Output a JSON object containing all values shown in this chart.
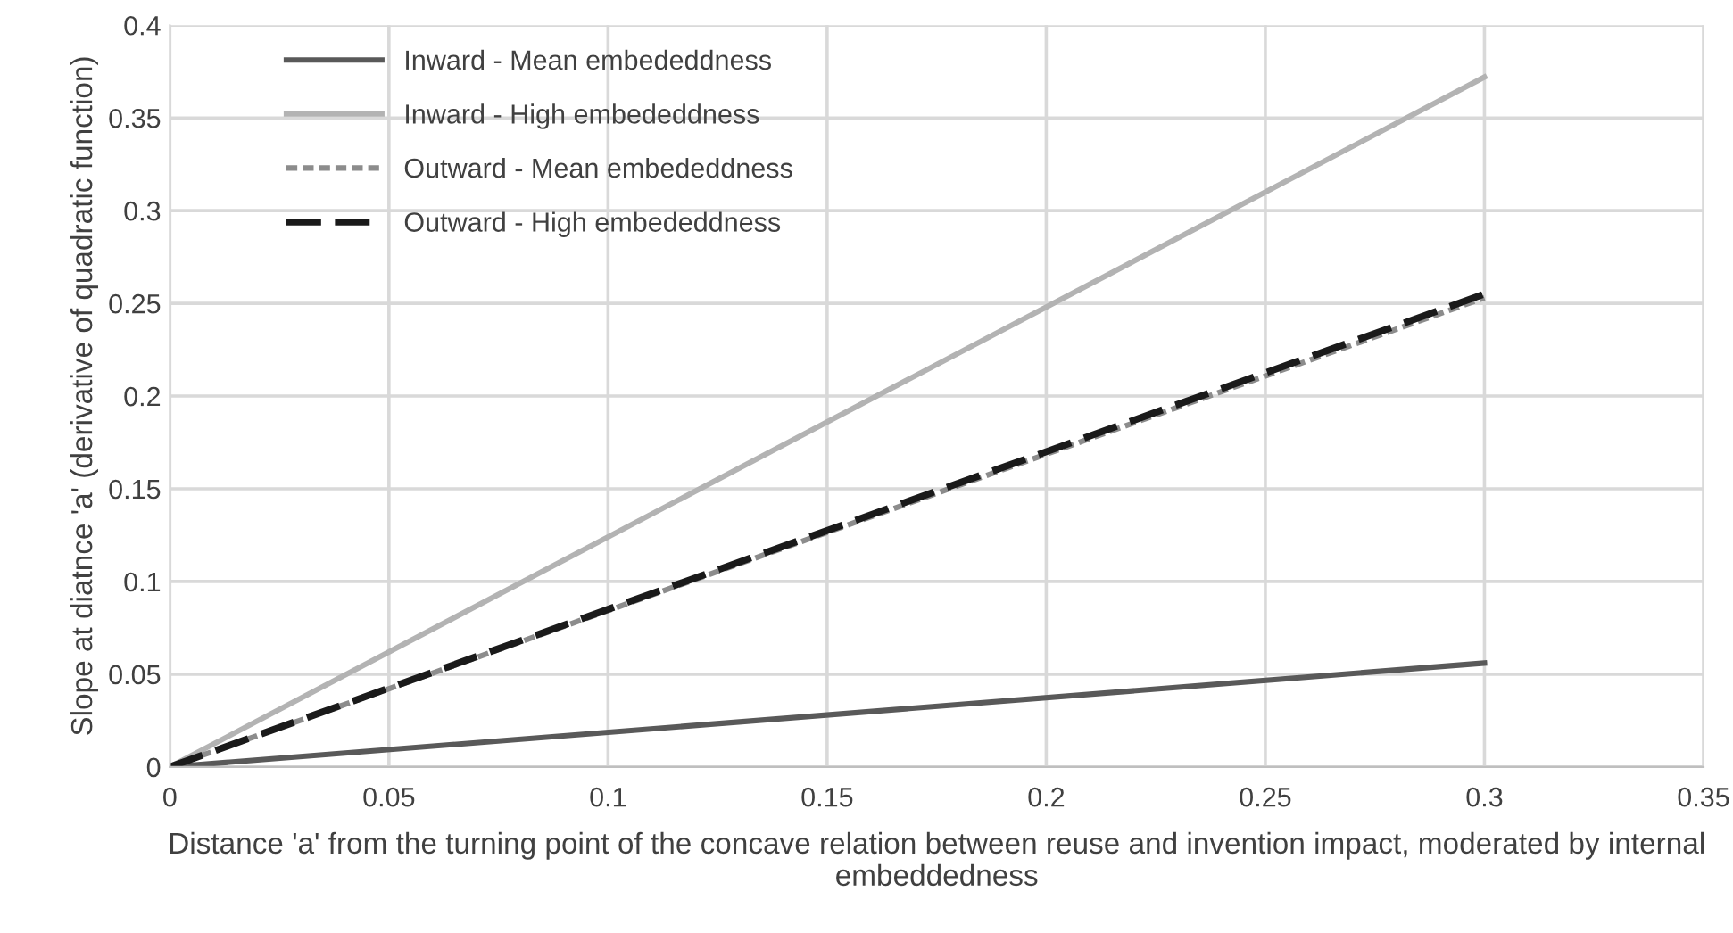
{
  "chart_data": {
    "type": "line",
    "xlabel": "Distance 'a' from the turning point of the concave relation between reuse and invention impact, moderated by internal embeddedness",
    "ylabel": "Slope at diatnce 'a' (derivative of quadratic function)",
    "x": [
      0,
      0.3
    ],
    "series": [
      {
        "name": "Inward - Mean embededdness",
        "color": "#595959",
        "line_style": "solid",
        "values": [
          0,
          0.056
        ]
      },
      {
        "name": "Inward - High embededdness",
        "color": "#b3b3b3",
        "line_style": "solid",
        "values": [
          0,
          0.372
        ]
      },
      {
        "name": "Outward - Mean embededdness",
        "color": "#8c8c8c",
        "line_style": "dotted",
        "values": [
          0,
          0.253
        ]
      },
      {
        "name": "Outward - High embededdness",
        "color": "#1a1a1a",
        "line_style": "dashed",
        "values": [
          0,
          0.255
        ]
      }
    ],
    "xlim": [
      0,
      0.35
    ],
    "xticks": [
      0,
      0.05,
      0.1,
      0.15,
      0.2,
      0.25,
      0.3,
      0.35
    ],
    "ylim": [
      0,
      0.4
    ],
    "yticks": [
      0,
      0.05,
      0.1,
      0.15,
      0.2,
      0.25,
      0.3,
      0.35,
      0.4
    ],
    "grid": true,
    "legend": "top left",
    "marker": "none"
  }
}
